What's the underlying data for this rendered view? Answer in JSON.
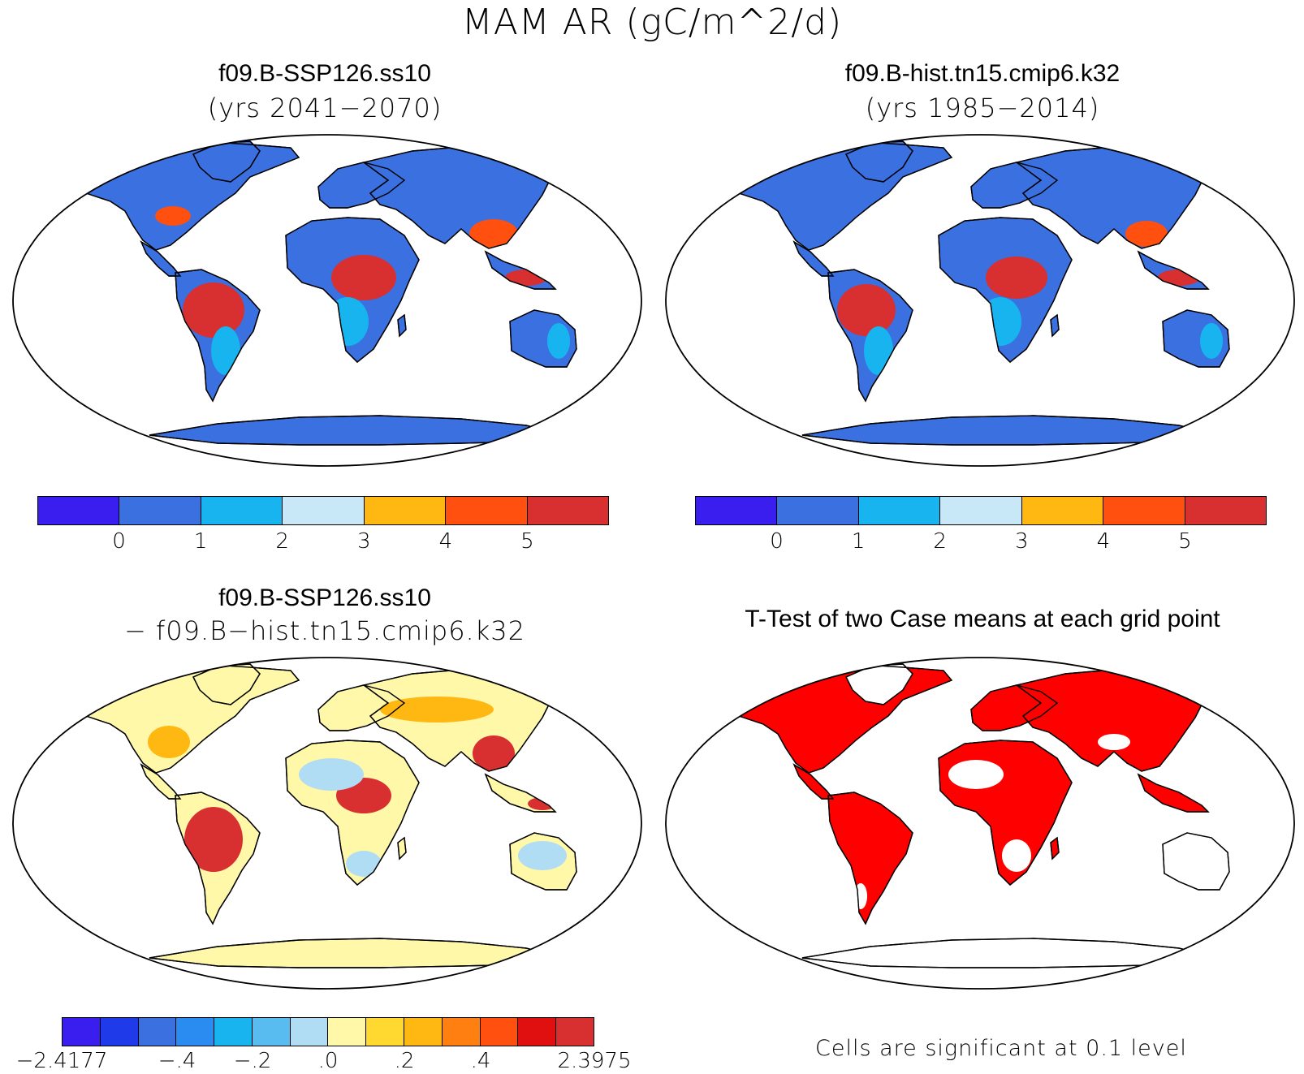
{
  "title": "MAM AR (gC/m^2/d)",
  "panels": {
    "tl": {
      "title": "f09.B-SSP126.ss10",
      "sub": "(yrs 2041−2070)"
    },
    "tr": {
      "title": "f09.B-hist.tn15.cmip6.k32",
      "sub": "(yrs 1985−2014)"
    },
    "bl": {
      "title": "f09.B-SSP126.ss10",
      "sub": "− f09.B−hist.tn15.cmip6.k32"
    },
    "br": {
      "title": "T-Test of two Case means at each grid point",
      "note": "Cells are significant at 0.1 level"
    }
  },
  "colorbar_main": {
    "colors": [
      "#3a1ef0",
      "#3a70e0",
      "#17b4f0",
      "#c8e8f8",
      "#ffb812",
      "#ff5010",
      "#d83030"
    ],
    "labels": [
      "0",
      "1",
      "2",
      "3",
      "4",
      "5"
    ]
  },
  "colorbar_diff": {
    "colors": [
      "#3a1ef0",
      "#1f3ae8",
      "#3a70e0",
      "#2a8cf0",
      "#17b4f0",
      "#58bcf0",
      "#b0dcf4",
      "#fff8a8",
      "#ffd830",
      "#ffb812",
      "#ff8010",
      "#ff5010",
      "#e01010",
      "#d83030"
    ],
    "labels": [
      "−2.4177",
      "−.4",
      "−.2",
      ".0",
      ".2",
      ".4",
      "2.3975"
    ]
  },
  "map_colors": {
    "ocean": "#ffffff",
    "tl_base": "#3a70e0",
    "tl_mid": "#17b4f0",
    "tl_warm": "#ff5010",
    "tl_hot": "#d83030",
    "bl_base": "#fff8a8",
    "bl_warm": "#ffb812",
    "bl_hot": "#d83030",
    "bl_cool": "#b0dcf4",
    "br_sig": "#ff0000"
  }
}
